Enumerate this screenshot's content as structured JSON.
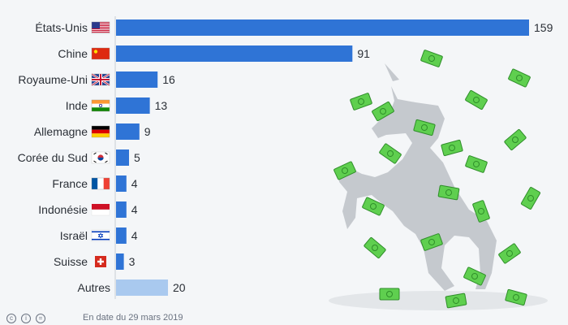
{
  "chart_data": {
    "type": "bar",
    "orientation": "horizontal",
    "categories": [
      "États-Unis",
      "Chine",
      "Royaume-Uni",
      "Inde",
      "Allemagne",
      "Corée du Sud",
      "France",
      "Indonésie",
      "Israël",
      "Suisse",
      "Autres"
    ],
    "values": [
      159,
      91,
      16,
      13,
      9,
      5,
      4,
      4,
      4,
      3,
      20
    ],
    "flags": [
      "us",
      "cn",
      "gb",
      "in",
      "de",
      "kr",
      "fr",
      "id",
      "il",
      "ch",
      ""
    ],
    "colors": {
      "bar": "#2f74d6",
      "bar_other": "#a9c9ef",
      "grid": "#c8cdd3"
    },
    "title": "",
    "xlabel": "",
    "ylabel": "",
    "xlim": [
      0,
      159
    ],
    "grid": false,
    "legend": "none"
  },
  "illustration": {
    "name": "unicorn-with-banknotes",
    "colors": {
      "unicorn": "#c5c9ce",
      "shadow": "#e3e6e9",
      "money": "#5fcf4f",
      "money_dark": "#2f8e2a"
    }
  },
  "footer": {
    "icons": [
      "cc-icon",
      "by-icon",
      "equals-icon"
    ],
    "text": "En date du 29 mars 2019"
  }
}
